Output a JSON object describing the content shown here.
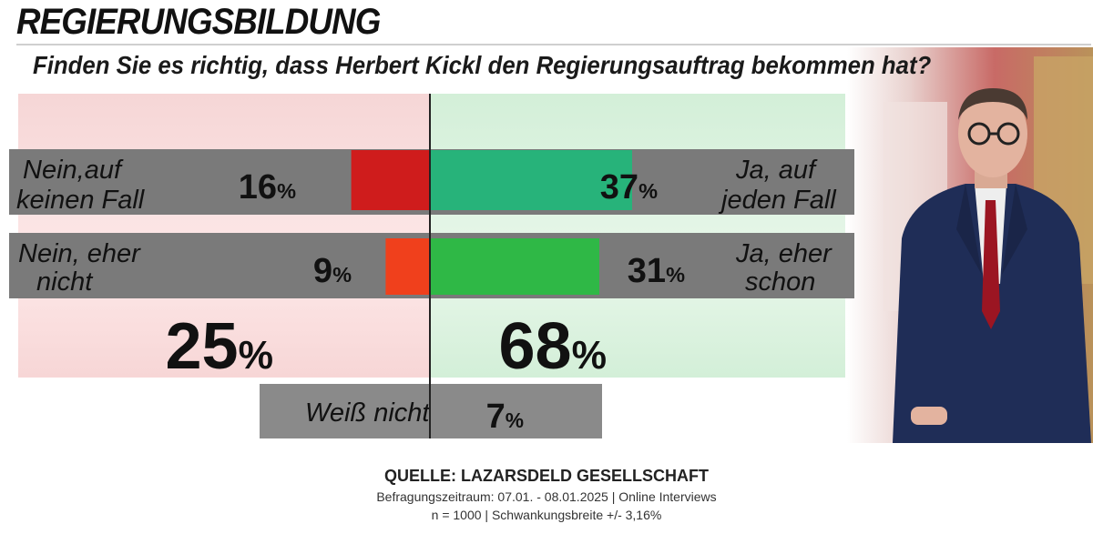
{
  "header": {
    "title": "REGIERUNGSBILDUNG",
    "question": "Finden Sie es richtig, dass Herbert Kickl den Regierungsauftrag bekommen hat?"
  },
  "colors": {
    "no_strong": "#cf1c1c",
    "no_mild": "#f0401c",
    "yes_strong": "#27b37a",
    "yes_mild": "#2fb846",
    "row_bg": "#7a7a7a",
    "panel_no": "#f5cfcf",
    "panel_yes": "#d4efd9",
    "dontknow_bg": "#8a8a8a"
  },
  "chart_data": {
    "type": "bar",
    "title": "Finden Sie es richtig, dass Herbert Kickl den Regierungsauftrag bekommen hat?",
    "max_value": 40,
    "rows": [
      {
        "no_label": [
          "Nein,auf",
          "keinen Fall"
        ],
        "no_value": 16,
        "yes_label": [
          "Ja, auf",
          "jeden Fall"
        ],
        "yes_value": 37
      },
      {
        "no_label": [
          "Nein, eher",
          "nicht"
        ],
        "no_value": 9,
        "yes_label": [
          "Ja, eher",
          "schon"
        ],
        "yes_value": 31
      }
    ],
    "totals": {
      "no": 25,
      "yes": 68
    },
    "dont_know": {
      "label": "Weiß nicht",
      "value": 7
    },
    "unit": "%"
  },
  "source": {
    "title": "QUELLE: LAZARSDELD GESELLSCHAFT",
    "line1": "Befragungszeitraum: 07.01. - 08.01.2025 | Online Interviews",
    "line2": "n = 1000 | Schwankungsbreite +/- 3,16%"
  },
  "photo": {
    "description_icon": "person-photo-icon"
  }
}
